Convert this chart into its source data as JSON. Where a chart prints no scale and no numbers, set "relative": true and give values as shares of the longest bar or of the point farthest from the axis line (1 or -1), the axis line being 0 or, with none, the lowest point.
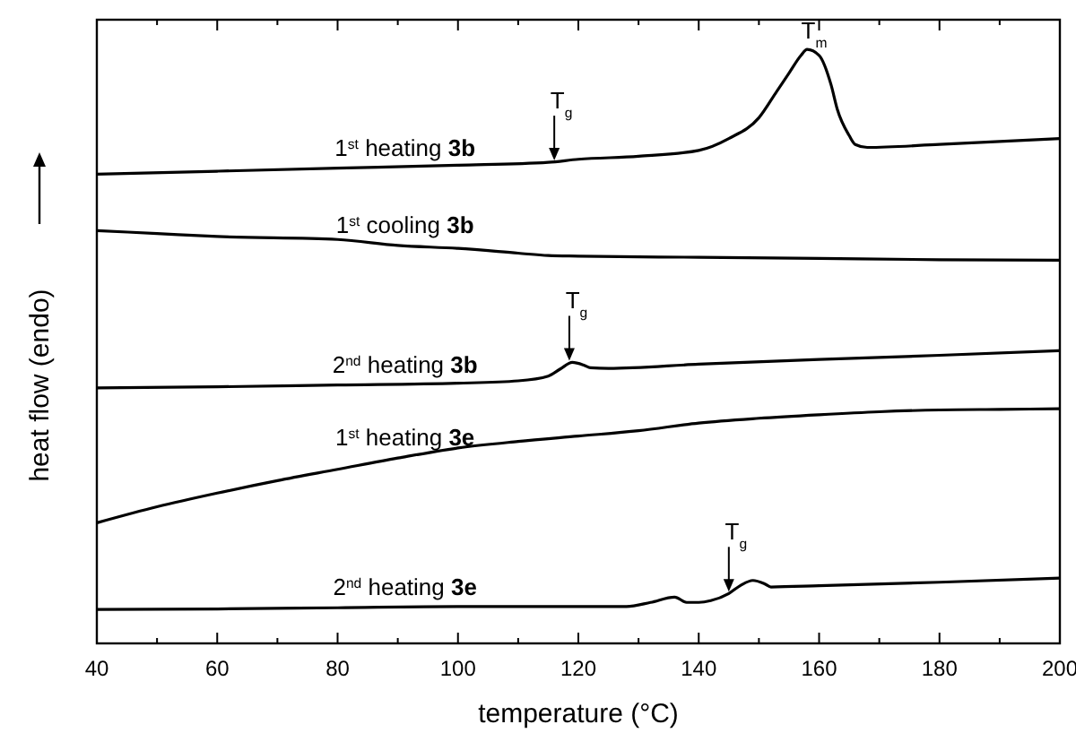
{
  "chart_data": {
    "type": "line",
    "relative": true,
    "xlabel": "temperature (°C)",
    "ylabel": "heat flow (endo)",
    "xlim": [
      40,
      200
    ],
    "xticks": [
      40,
      60,
      80,
      100,
      120,
      140,
      160,
      180,
      200
    ],
    "series": [
      {
        "name": "1$^{st}$ heating 3b",
        "color": "#000000",
        "x": [
          40,
          60,
          80,
          100,
          115,
          120,
          130,
          140,
          145,
          150,
          153,
          155,
          157,
          158,
          160,
          162,
          163,
          165,
          166,
          168,
          180,
          200
        ],
        "values": [
          0.79,
          0.795,
          0.8,
          0.805,
          0.81,
          0.815,
          0.82,
          0.83,
          0.85,
          0.885,
          0.93,
          0.96,
          0.99,
          1.0,
          0.99,
          0.94,
          0.9,
          0.855,
          0.84,
          0.835,
          0.84,
          0.85
        ]
      },
      {
        "name": "1$^{st}$ cooling 3b",
        "color": "#000000",
        "x": [
          40,
          50,
          60,
          80,
          90,
          100,
          110,
          115,
          120,
          140,
          160,
          180,
          200
        ],
        "values": [
          0.695,
          0.69,
          0.685,
          0.68,
          0.67,
          0.665,
          0.657,
          0.653,
          0.652,
          0.65,
          0.648,
          0.646,
          0.645
        ]
      },
      {
        "name": "2$^{nd}$ heating 3b",
        "color": "#000000",
        "x": [
          40,
          60,
          80,
          100,
          110,
          115,
          117,
          119,
          121,
          122,
          125,
          140,
          160,
          180,
          200
        ],
        "values": [
          0.43,
          0.432,
          0.435,
          0.438,
          0.442,
          0.45,
          0.462,
          0.473,
          0.468,
          0.464,
          0.463,
          0.47,
          0.478,
          0.485,
          0.493
        ]
      },
      {
        "name": "1$^{st}$ heating 3e",
        "color": "#000000",
        "x": [
          40,
          50,
          60,
          70,
          80,
          90,
          100,
          110,
          120,
          130,
          140,
          150,
          160,
          170,
          180,
          190,
          200
        ],
        "values": [
          0.203,
          0.23,
          0.253,
          0.274,
          0.293,
          0.312,
          0.329,
          0.34,
          0.349,
          0.358,
          0.371,
          0.379,
          0.385,
          0.39,
          0.393,
          0.394,
          0.395
        ]
      },
      {
        "name": "2$^{nd}$ heating 3e",
        "color": "#000000",
        "x": [
          40,
          60,
          80,
          100,
          120,
          128,
          132,
          136,
          138,
          140,
          142,
          145,
          147,
          149,
          151,
          152,
          160,
          180,
          200
        ],
        "values": [
          0.057,
          0.058,
          0.06,
          0.062,
          0.062,
          0.062,
          0.069,
          0.078,
          0.069,
          0.069,
          0.072,
          0.084,
          0.098,
          0.106,
          0.1,
          0.095,
          0.097,
          0.103,
          0.11
        ]
      }
    ],
    "annotations": [
      {
        "text": "T$_{g}$",
        "x": 116,
        "y": 0.81
      },
      {
        "text": "T$_{m}$",
        "x": 158,
        "y": 1.0
      },
      {
        "text": "T$_{g}$",
        "x": 118.5,
        "y": 0.473
      },
      {
        "text": "T$_{g}$",
        "x": 145,
        "y": 0.084
      }
    ]
  }
}
